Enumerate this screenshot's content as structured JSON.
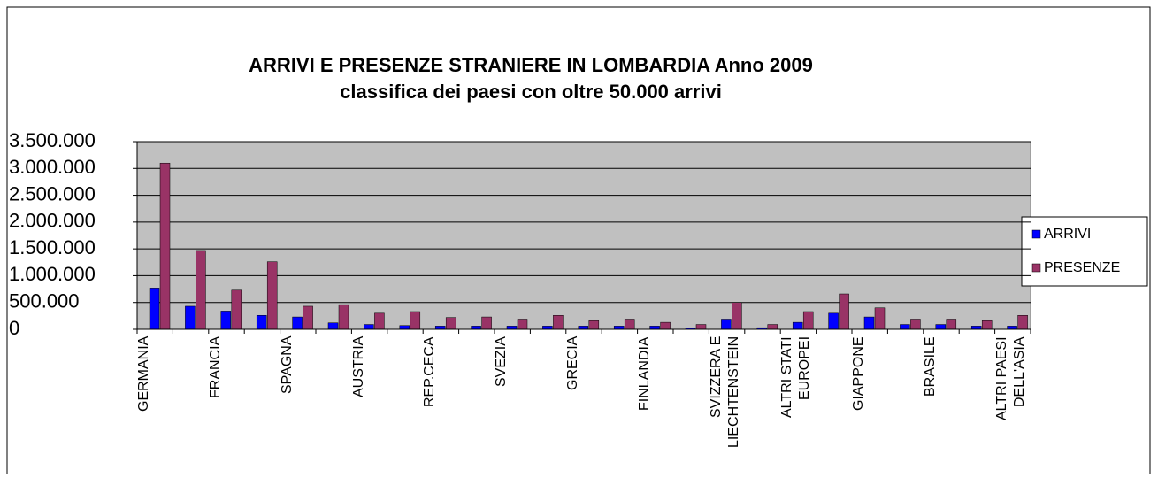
{
  "chart_data": {
    "type": "bar",
    "title": "ARRIVI E PRESENZE STRANIERE IN LOMBARDIA  Anno 2009",
    "subtitle": "classifica dei paesi con oltre 50.000 arrivi",
    "categories": [
      "GERMANIA",
      null,
      "FRANCIA",
      null,
      "SPAGNA",
      null,
      "AUSTRIA",
      null,
      "REP.CECA",
      null,
      "SVEZIA",
      null,
      "GRECIA",
      null,
      "FINLANDIA",
      null,
      "SVIZZERA E LIECHTENSTEIN",
      null,
      "ALTRI STATI EUROPEI",
      null,
      "GIAPPONE",
      null,
      "BRASILE",
      null,
      "ALTRI PAESI DELL'ASIA"
    ],
    "series": [
      {
        "name": "ARRIVI",
        "color": "#0000ff",
        "values": [
          770000,
          430000,
          340000,
          260000,
          230000,
          120000,
          90000,
          70000,
          60000,
          60000,
          60000,
          60000,
          60000,
          60000,
          60000,
          20000,
          190000,
          30000,
          130000,
          300000,
          230000,
          90000,
          90000,
          60000,
          60000
        ]
      },
      {
        "name": "PRESENZE",
        "color": "#993366",
        "values": [
          3100000,
          1470000,
          730000,
          1260000,
          430000,
          460000,
          300000,
          330000,
          220000,
          230000,
          190000,
          260000,
          160000,
          190000,
          130000,
          90000,
          500000,
          90000,
          330000,
          660000,
          400000,
          190000,
          190000,
          160000,
          260000
        ]
      }
    ],
    "ylim": [
      0,
      3500000
    ],
    "yticks": [
      0,
      {
        "value": 500000,
        "label": "500.000"
      },
      {
        "value": 1000000,
        "label": "1.000.000"
      },
      {
        "value": 1500000,
        "label": "1.500.000"
      },
      {
        "value": 2000000,
        "label": "2.000.000"
      },
      {
        "value": 2500000,
        "label": "2.500.000"
      },
      {
        "value": 3000000,
        "label": "3.000.000"
      },
      {
        "value": 3500000,
        "label": "3.500.000"
      }
    ],
    "grid": true,
    "legend": "right"
  }
}
